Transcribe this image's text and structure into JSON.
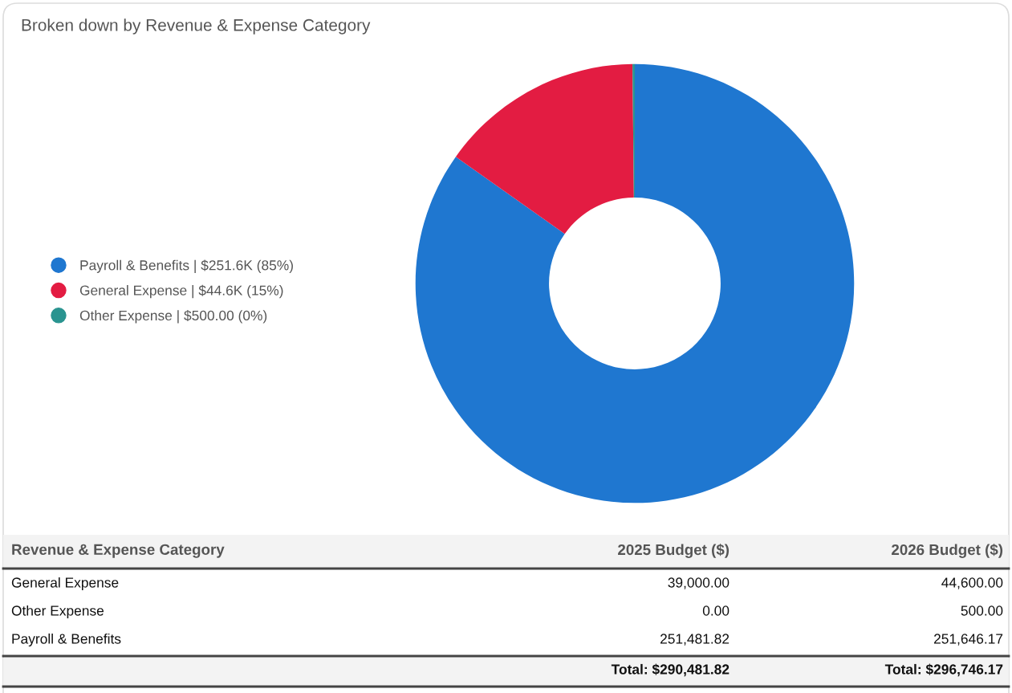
{
  "chart_data": [
    {
      "type": "donut",
      "title": "Broken down by Revenue & Expense Category",
      "categories": [
        "Payroll & Benefits | $251.6K (85%)",
        "General Expense | $44.6K (15%)",
        "Other Expense | $500.00 (0%)"
      ],
      "values": [
        84.8,
        15.03,
        0.17
      ],
      "colors": [
        "#1f77d0",
        "#e31c42",
        "#2a9490"
      ],
      "legend": "left"
    },
    {
      "type": "other",
      "annotations": [
        "Revenue & Expense Category",
        "2025 Budget ($)",
        "2026 Budget ($)",
        "General Expense",
        "39,000.00",
        "44,600.00",
        "Other Expense",
        "0.00",
        "500.00",
        "Payroll & Benefits",
        "251,481.82",
        "251,646.17",
        "Total: $290,481.82",
        "Total: $296,746.17"
      ]
    }
  ]
}
